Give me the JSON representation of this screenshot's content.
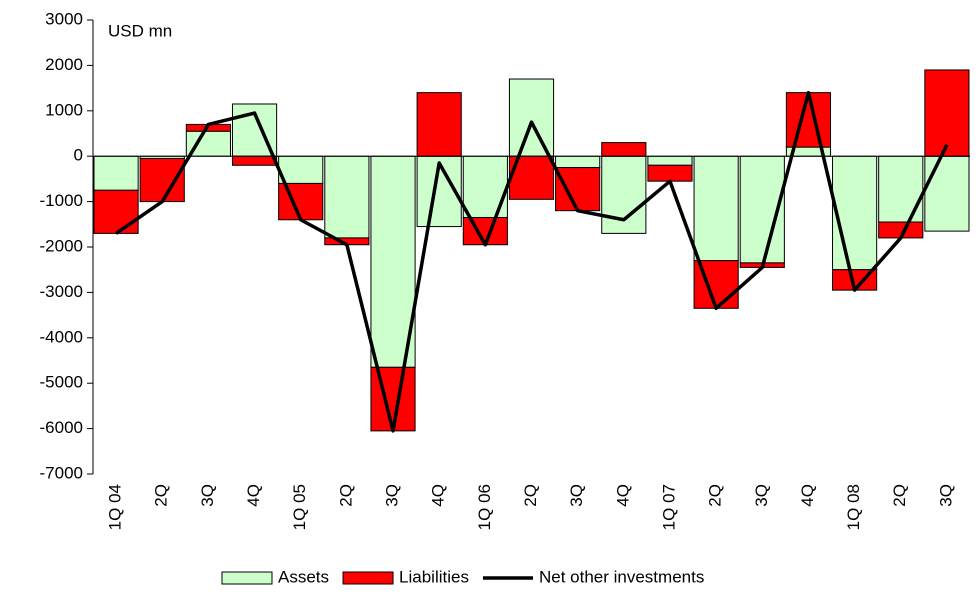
{
  "chart_data": {
    "type": "bar",
    "stacked": true,
    "annotation": "USD mn",
    "categories": [
      "1Q 04",
      "2Q",
      "3Q",
      "4Q",
      "1Q 05",
      "2Q",
      "3Q",
      "4Q",
      "1Q 06",
      "2Q",
      "3Q",
      "4Q",
      "1Q 07",
      "2Q",
      "3Q",
      "4Q",
      "1Q 08",
      "2Q",
      "3Q"
    ],
    "series": [
      {
        "name": "Assets",
        "type": "bar",
        "color": "#ccffcc",
        "values": [
          -750,
          -50,
          550,
          1150,
          -600,
          -1800,
          -4650,
          -1550,
          -1350,
          1700,
          -250,
          -1700,
          -200,
          -2300,
          -2350,
          200,
          -2500,
          -1450,
          -1650
        ]
      },
      {
        "name": "Liabilities",
        "type": "bar",
        "color": "#ff0000",
        "values": [
          -950,
          -950,
          150,
          -200,
          -800,
          -150,
          -1400,
          1400,
          -600,
          -950,
          -950,
          300,
          -350,
          -1050,
          -100,
          1200,
          -450,
          -350,
          1900
        ]
      },
      {
        "name": "Net other investments",
        "type": "line",
        "color": "#000000",
        "values": [
          -1700,
          -1000,
          700,
          950,
          -1400,
          -1950,
          -6050,
          -150,
          -1950,
          750,
          -1200,
          -1400,
          -550,
          -3350,
          -2450,
          1400,
          -2950,
          -1800,
          250
        ]
      }
    ],
    "ylim": [
      -7000,
      3000
    ],
    "yticks": [
      -7000,
      -6000,
      -5000,
      -4000,
      -3000,
      -2000,
      -1000,
      0,
      1000,
      2000,
      3000
    ],
    "grid": false,
    "legend": "bottom"
  }
}
